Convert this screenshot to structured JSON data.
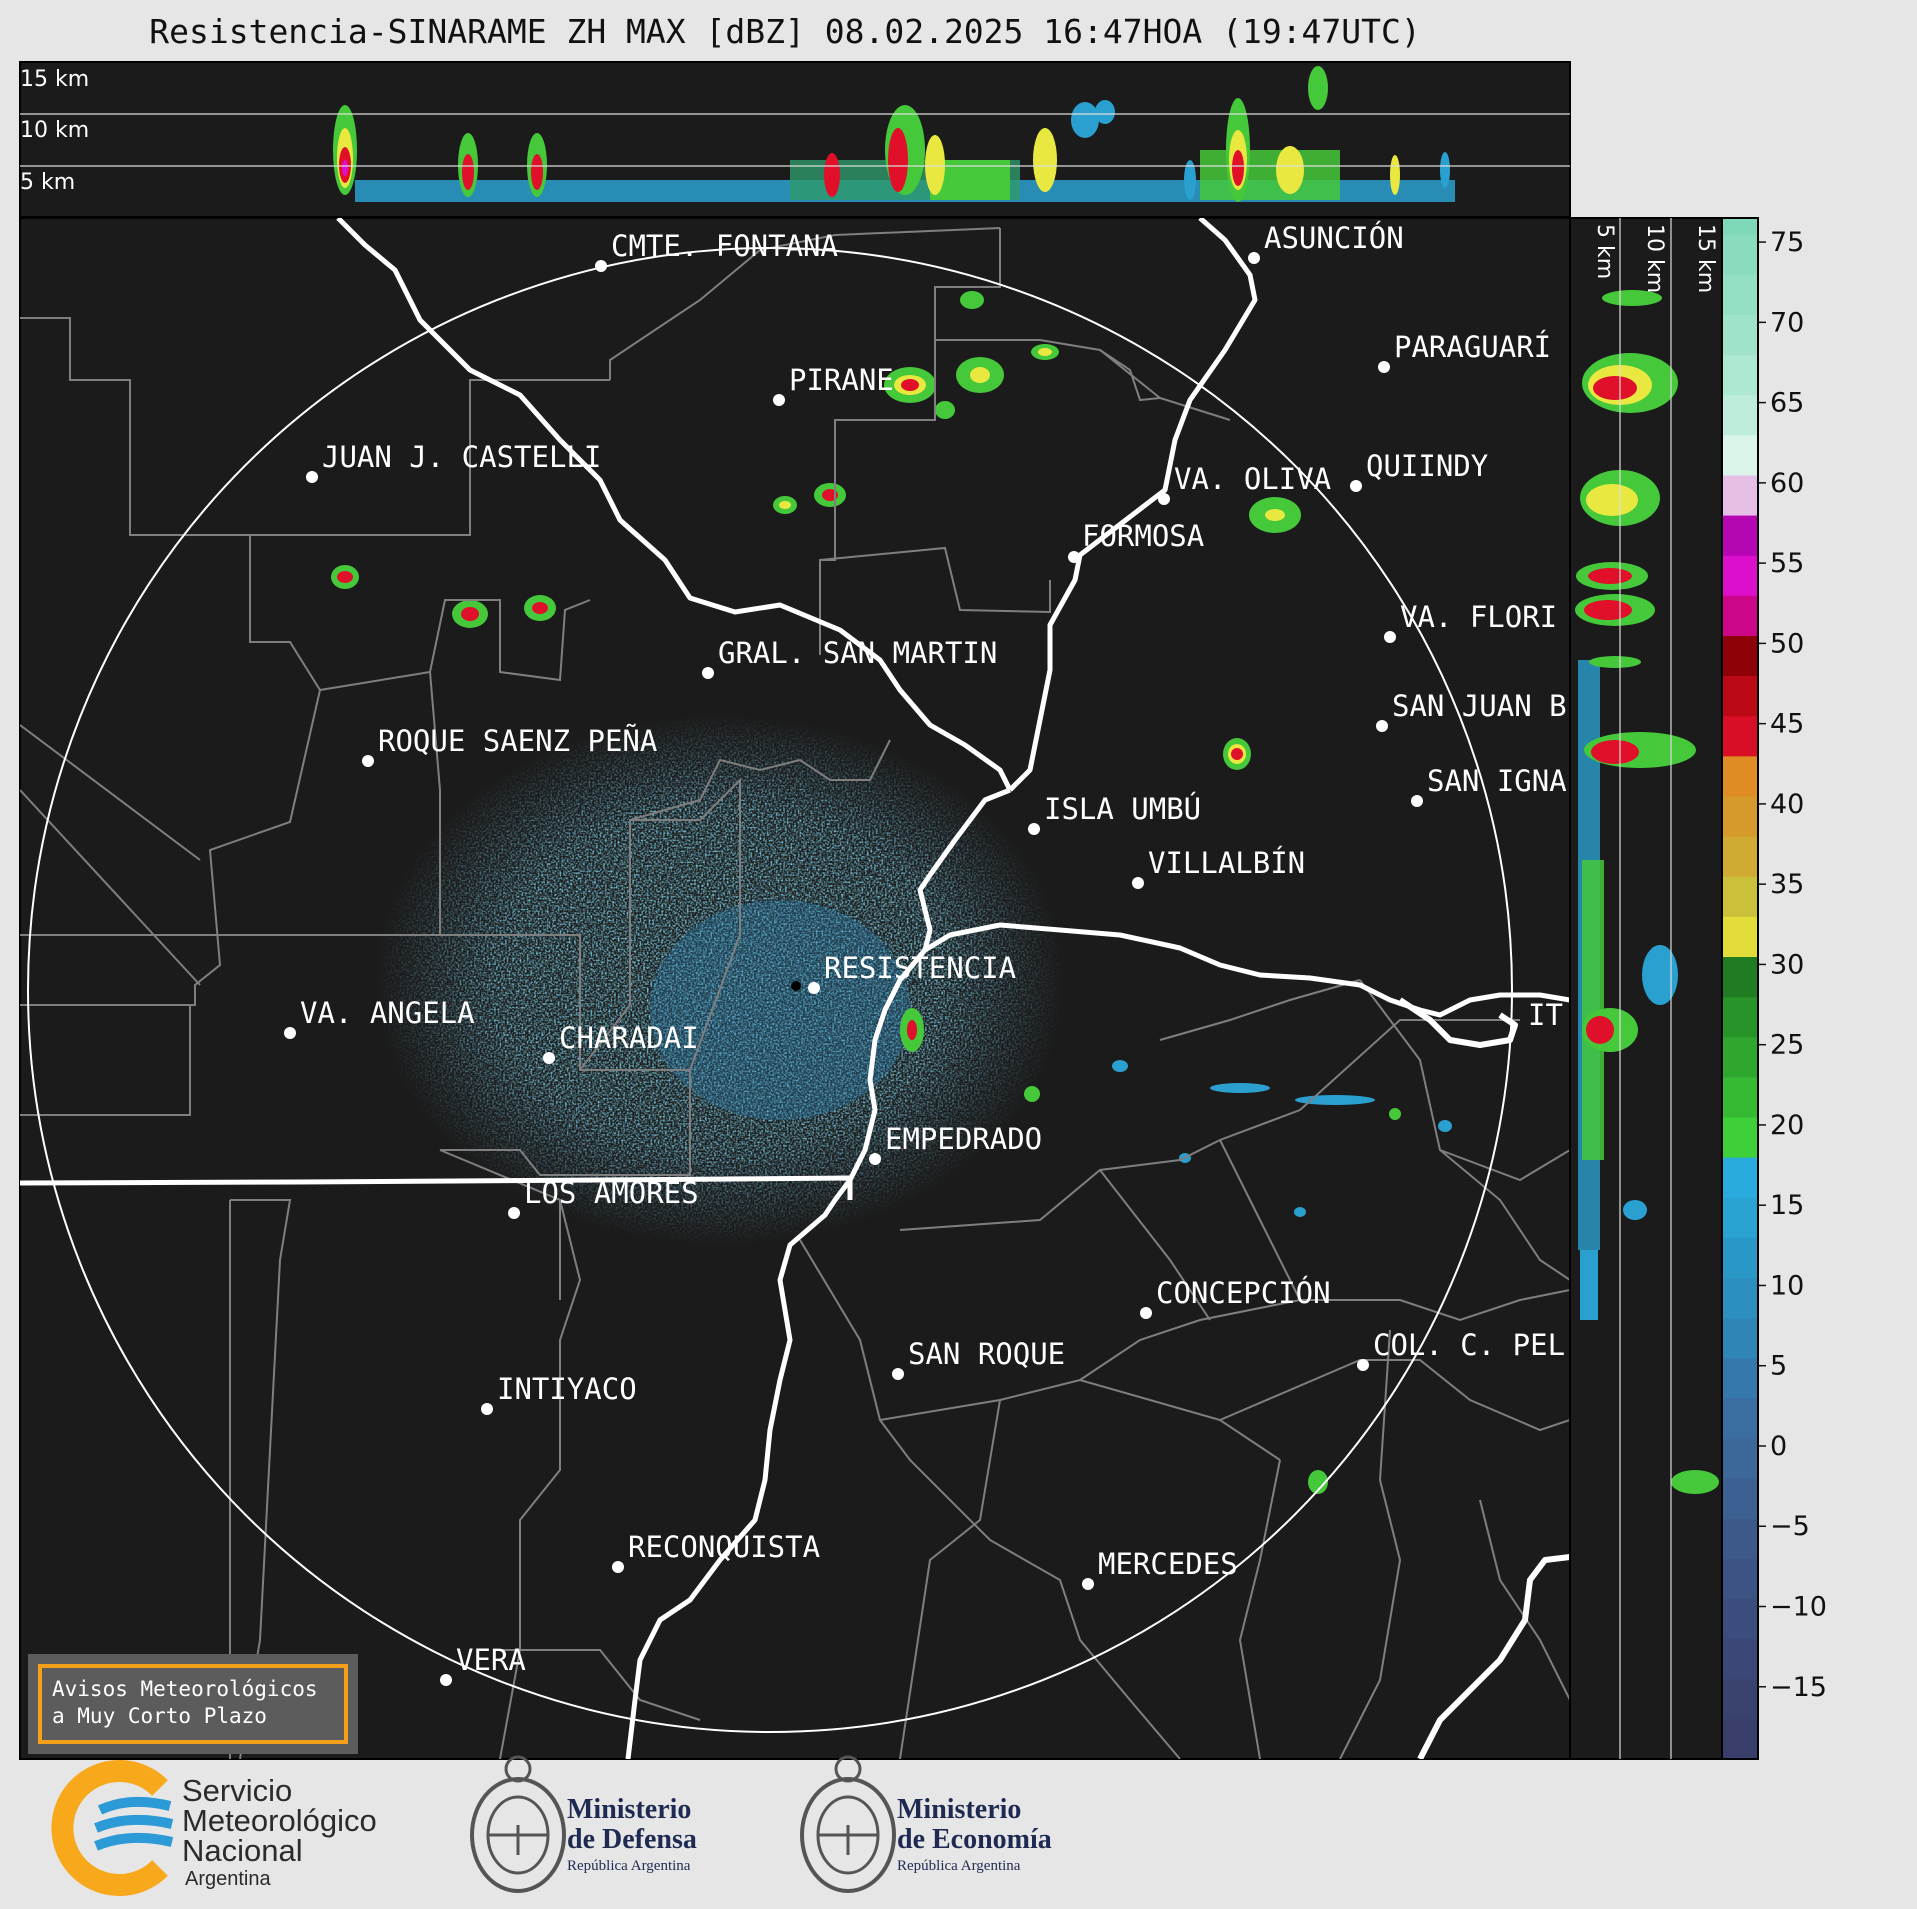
{
  "header": {
    "title": "Resistencia-SINARAME ZH MAX [dBZ] 08.02.2025 16:47HOA (19:47UTC)"
  },
  "top_panel": {
    "altitude_labels": [
      "15 km",
      "10 km",
      "5 km"
    ]
  },
  "side_panel": {
    "altitude_labels": [
      "5 km",
      "10 km",
      "15 km"
    ]
  },
  "colorbar": {
    "ticks": [
      75,
      70,
      65,
      60,
      55,
      50,
      45,
      40,
      35,
      30,
      25,
      20,
      15,
      10,
      5,
      0,
      -5,
      -10,
      -15
    ],
    "tick_labels": [
      "75",
      "70",
      "65",
      "60",
      "55",
      "50",
      "45",
      "40",
      "35",
      "30",
      "25",
      "20",
      "15",
      "10",
      "5",
      "0",
      "−5",
      "−10",
      "−15"
    ],
    "range": [
      -19.5,
      76.5
    ]
  },
  "map": {
    "cities": [
      {
        "name": "CMTE. FONTANA"
      },
      {
        "name": "ASUNCIÓN"
      },
      {
        "name": "PARAGUARÍ"
      },
      {
        "name": "PIRANE"
      },
      {
        "name": "JUAN J. CASTELLI"
      },
      {
        "name": "VA. OLIVA"
      },
      {
        "name": "QUIINDY"
      },
      {
        "name": "FORMOSA"
      },
      {
        "name": "VA. FLORI"
      },
      {
        "name": "GRAL. SAN MARTIN"
      },
      {
        "name": "SAN JUAN B"
      },
      {
        "name": "ROQUE SAENZ PEÑA"
      },
      {
        "name": "SAN IGNA"
      },
      {
        "name": "ISLA UMBÚ"
      },
      {
        "name": "VILLALBÍN"
      },
      {
        "name": "RESISTENCIA"
      },
      {
        "name": "VA. ANGELA"
      },
      {
        "name": "CHARADAI"
      },
      {
        "name": "IT"
      },
      {
        "name": "EMPEDRADO"
      },
      {
        "name": "LOS AMORES"
      },
      {
        "name": "CONCEPCIÓN"
      },
      {
        "name": "SAN ROQUE"
      },
      {
        "name": "COL. C. PEL"
      },
      {
        "name": "INTIYACO"
      },
      {
        "name": "RECONQUISTA"
      },
      {
        "name": "MERCEDES"
      },
      {
        "name": "VERA"
      }
    ]
  },
  "alert": {
    "line1": "Avisos Meteorológicos",
    "line2": "a Muy Corto Plazo"
  },
  "footer": {
    "smn": {
      "line1": "Servicio",
      "line2": "Meteorológico",
      "line3": "Nacional",
      "country": "Argentina"
    },
    "defensa": {
      "line1": "Ministerio",
      "line2": "de Defensa",
      "country": "República Argentina"
    },
    "economia": {
      "line1": "Ministerio",
      "line2": "de Economía",
      "country": "República Argentina"
    }
  },
  "colors": {
    "map_background": "#1b1b1b",
    "border_lines": "#808080",
    "river": "#ffffff",
    "accent_alert": "#f5a01a"
  }
}
